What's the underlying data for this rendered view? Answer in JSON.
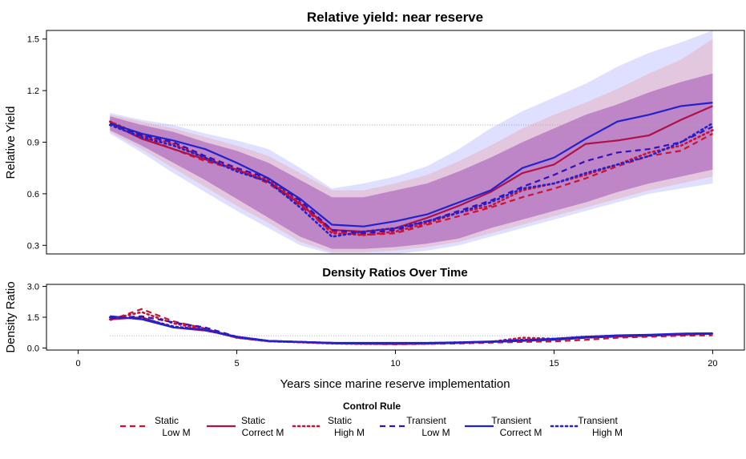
{
  "colors": {
    "static": "#cc1133",
    "static_line": "#b0104a",
    "transient": "#2222cc",
    "transient_line": "#3311bb",
    "band_static": "#f08080",
    "band_transient": "#8080ff",
    "band_mid": "#a050b0",
    "ref_line": "#aaaaaa"
  },
  "chart_data": [
    {
      "type": "line",
      "title": "Relative yield: near reserve",
      "xlabel": "",
      "ylabel": "Relative Yield",
      "xlim": [
        -1,
        21
      ],
      "ylim": [
        0.25,
        1.55
      ],
      "yticks": [
        0.3,
        0.6,
        0.9,
        1.2,
        1.5
      ],
      "yticklabels": [
        "0.3",
        "0.6",
        "0.9",
        "1.2",
        "1.5"
      ],
      "reference_line": 1.0,
      "grid": false,
      "x": [
        1,
        2,
        3,
        4,
        5,
        6,
        7,
        8,
        9,
        10,
        11,
        12,
        13,
        14,
        15,
        16,
        17,
        18,
        19,
        20
      ],
      "series": [
        {
          "name": "Static Low M",
          "style": "dashed",
          "color": "static",
          "values": [
            1.02,
            0.93,
            0.86,
            0.79,
            0.74,
            0.66,
            0.53,
            0.38,
            0.36,
            0.37,
            0.42,
            0.47,
            0.52,
            0.58,
            0.63,
            0.69,
            0.76,
            0.82,
            0.85,
            0.95
          ]
        },
        {
          "name": "Static Correct M",
          "style": "solid",
          "color": "static_line",
          "values": [
            1.01,
            0.92,
            0.86,
            0.8,
            0.74,
            0.67,
            0.54,
            0.39,
            0.38,
            0.4,
            0.46,
            0.53,
            0.61,
            0.72,
            0.77,
            0.89,
            0.91,
            0.94,
            1.03,
            1.11
          ]
        },
        {
          "name": "Static High M",
          "style": "dotted",
          "color": "static",
          "values": [
            1.02,
            0.94,
            0.89,
            0.81,
            0.74,
            0.68,
            0.55,
            0.37,
            0.36,
            0.38,
            0.43,
            0.49,
            0.53,
            0.62,
            0.66,
            0.71,
            0.77,
            0.84,
            0.88,
            0.97
          ]
        },
        {
          "name": "Transient Low M",
          "style": "dashed",
          "color": "transient_line",
          "values": [
            1.01,
            0.94,
            0.9,
            0.82,
            0.75,
            0.69,
            0.56,
            0.39,
            0.37,
            0.39,
            0.44,
            0.5,
            0.56,
            0.64,
            0.71,
            0.79,
            0.84,
            0.86,
            0.9,
            0.99
          ]
        },
        {
          "name": "Transient Correct M",
          "style": "solid",
          "color": "transient",
          "values": [
            1.01,
            0.95,
            0.91,
            0.86,
            0.78,
            0.69,
            0.57,
            0.42,
            0.41,
            0.44,
            0.48,
            0.55,
            0.62,
            0.75,
            0.81,
            0.92,
            1.02,
            1.06,
            1.11,
            1.13
          ]
        },
        {
          "name": "Transient High M",
          "style": "dotted",
          "color": "transient",
          "values": [
            1.0,
            0.93,
            0.88,
            0.81,
            0.73,
            0.67,
            0.52,
            0.35,
            0.38,
            0.4,
            0.44,
            0.49,
            0.55,
            0.63,
            0.66,
            0.72,
            0.77,
            0.82,
            0.9,
            1.01
          ]
        }
      ],
      "bands": [
        {
          "color": "band_transient",
          "lower": [
            0.95,
            0.84,
            0.72,
            0.61,
            0.5,
            0.4,
            0.3,
            0.25,
            0.25,
            0.25,
            0.27,
            0.3,
            0.35,
            0.4,
            0.45,
            0.5,
            0.55,
            0.6,
            0.63,
            0.66
          ],
          "upper": [
            1.07,
            1.03,
            1.0,
            0.95,
            0.91,
            0.86,
            0.75,
            0.63,
            0.66,
            0.7,
            0.76,
            0.86,
            0.98,
            1.08,
            1.16,
            1.24,
            1.34,
            1.42,
            1.48,
            1.55
          ]
        },
        {
          "color": "band_static",
          "lower": [
            0.96,
            0.86,
            0.75,
            0.64,
            0.53,
            0.43,
            0.32,
            0.26,
            0.26,
            0.27,
            0.29,
            0.32,
            0.37,
            0.42,
            0.47,
            0.52,
            0.57,
            0.62,
            0.66,
            0.7
          ],
          "upper": [
            1.06,
            1.02,
            0.98,
            0.93,
            0.88,
            0.82,
            0.72,
            0.62,
            0.62,
            0.66,
            0.71,
            0.79,
            0.88,
            0.98,
            1.06,
            1.13,
            1.21,
            1.3,
            1.38,
            1.5
          ]
        },
        {
          "color": "band_mid",
          "lower": [
            0.97,
            0.88,
            0.78,
            0.68,
            0.57,
            0.46,
            0.35,
            0.28,
            0.28,
            0.29,
            0.31,
            0.34,
            0.4,
            0.45,
            0.5,
            0.55,
            0.61,
            0.66,
            0.7,
            0.74
          ],
          "upper": [
            1.05,
            1.0,
            0.96,
            0.9,
            0.85,
            0.78,
            0.68,
            0.58,
            0.58,
            0.62,
            0.66,
            0.73,
            0.81,
            0.9,
            0.98,
            1.06,
            1.12,
            1.19,
            1.25,
            1.3
          ]
        }
      ]
    },
    {
      "type": "line",
      "title": "Density Ratios Over Time",
      "xlabel": "Years since marine reserve implementation",
      "ylabel": "Density Ratio",
      "xlim": [
        -1,
        21
      ],
      "ylim": [
        -0.1,
        3.1
      ],
      "xticks": [
        0,
        5,
        10,
        15,
        20
      ],
      "xticklabels": [
        "0",
        "5",
        "10",
        "15",
        "20"
      ],
      "yticks": [
        0.0,
        1.5,
        3.0
      ],
      "yticklabels": [
        "0.0",
        "1.5",
        "3.0"
      ],
      "reference_line": 0.6,
      "grid": false,
      "x": [
        1,
        2,
        3,
        4,
        5,
        6,
        7,
        8,
        9,
        10,
        11,
        12,
        13,
        14,
        15,
        16,
        17,
        18,
        19,
        20
      ],
      "series": [
        {
          "name": "Static Low M",
          "style": "dashed",
          "color": "static",
          "values": [
            1.35,
            1.9,
            1.3,
            0.95,
            0.5,
            0.32,
            0.28,
            0.22,
            0.2,
            0.18,
            0.2,
            0.22,
            0.26,
            0.3,
            0.32,
            0.4,
            0.5,
            0.55,
            0.6,
            0.62
          ]
        },
        {
          "name": "Static Correct M",
          "style": "solid",
          "color": "static_line",
          "values": [
            1.4,
            1.5,
            1.0,
            0.85,
            0.55,
            0.35,
            0.3,
            0.25,
            0.22,
            0.2,
            0.22,
            0.25,
            0.3,
            0.35,
            0.4,
            0.5,
            0.55,
            0.6,
            0.65,
            0.7
          ]
        },
        {
          "name": "Static High M",
          "style": "dotted",
          "color": "static",
          "values": [
            1.4,
            1.75,
            1.2,
            0.9,
            0.5,
            0.33,
            0.28,
            0.22,
            0.2,
            0.2,
            0.21,
            0.25,
            0.3,
            0.5,
            0.45,
            0.55,
            0.6,
            0.62,
            0.65,
            0.7
          ]
        },
        {
          "name": "Transient Low M",
          "style": "dashed",
          "color": "transient_line",
          "values": [
            1.45,
            1.55,
            1.25,
            1.0,
            0.55,
            0.35,
            0.3,
            0.25,
            0.22,
            0.22,
            0.23,
            0.26,
            0.3,
            0.35,
            0.4,
            0.5,
            0.6,
            0.62,
            0.7,
            0.72
          ]
        },
        {
          "name": "Transient Correct M",
          "style": "solid",
          "color": "transient",
          "values": [
            1.55,
            1.4,
            1.0,
            0.9,
            0.55,
            0.35,
            0.3,
            0.25,
            0.25,
            0.25,
            0.25,
            0.28,
            0.32,
            0.38,
            0.45,
            0.55,
            0.62,
            0.65,
            0.7,
            0.72
          ]
        },
        {
          "name": "Transient High M",
          "style": "dotted",
          "color": "transient",
          "values": [
            1.5,
            1.45,
            1.05,
            0.88,
            0.52,
            0.34,
            0.3,
            0.24,
            0.22,
            0.22,
            0.24,
            0.27,
            0.3,
            0.4,
            0.42,
            0.52,
            0.6,
            0.62,
            0.68,
            0.7
          ]
        }
      ]
    }
  ],
  "legend": {
    "title": "Control Rule",
    "placement": "bottom",
    "items": [
      {
        "line1": "Static",
        "line2": "Low M",
        "style": "dashed",
        "color": "static"
      },
      {
        "line1": "Static",
        "line2": "Correct M",
        "style": "solid",
        "color": "static_line"
      },
      {
        "line1": "Static",
        "line2": "High M",
        "style": "dotted",
        "color": "static"
      },
      {
        "line1": "Transient",
        "line2": "Low M",
        "style": "dashed",
        "color": "transient_line"
      },
      {
        "line1": "Transient",
        "line2": "Correct M",
        "style": "solid",
        "color": "transient"
      },
      {
        "line1": "Transient",
        "line2": "High M",
        "style": "dotted",
        "color": "transient"
      }
    ]
  }
}
